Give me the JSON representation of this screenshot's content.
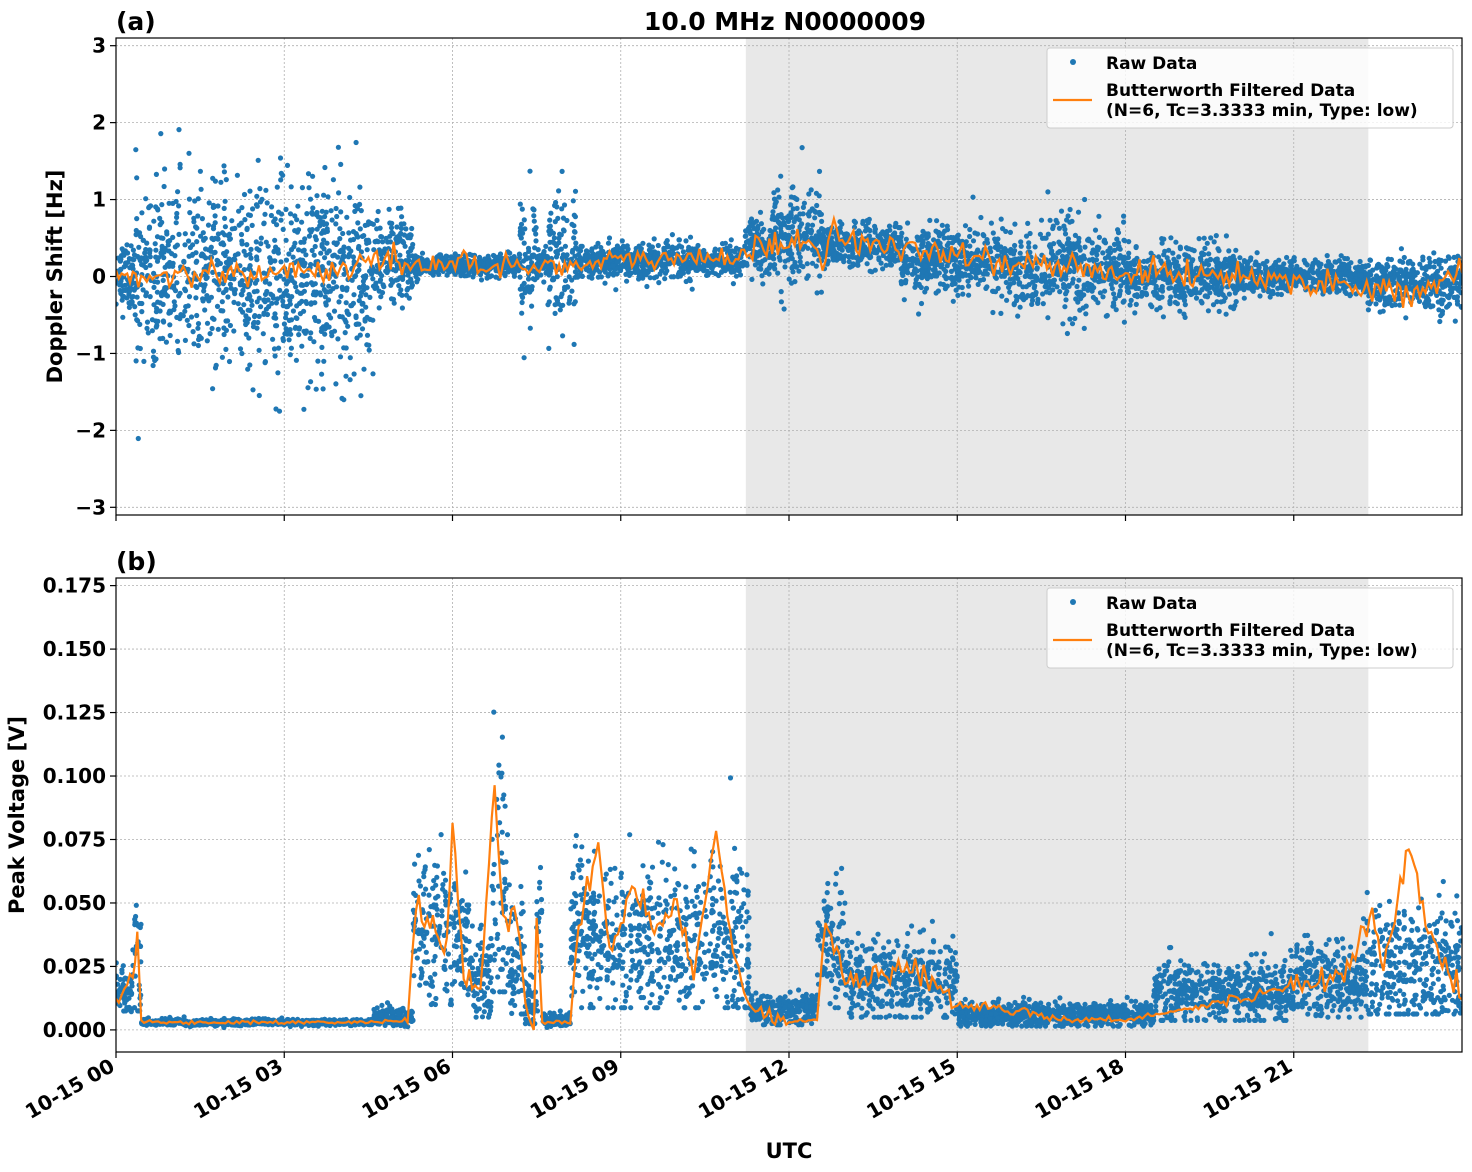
{
  "chart_data": {
    "type": "scatter",
    "title": "10.0 MHz N0000009",
    "xlabel": "UTC",
    "x_unit": "hours since 10-15 00:00",
    "xlim": [
      0,
      24
    ],
    "x_ticks": [
      0,
      3,
      6,
      9,
      12,
      15,
      18,
      21
    ],
    "x_tick_labels": [
      "10-15 00",
      "10-15 03",
      "10-15 06",
      "10-15 09",
      "10-15 12",
      "10-15 15",
      "10-15 18",
      "10-15 21"
    ],
    "shaded_interval": [
      11.23,
      22.33
    ],
    "colors": {
      "raw": "#1f77b4",
      "filtered": "#ff7f0e",
      "shade": "#e8e8e8"
    },
    "legend": {
      "placement": "top-right",
      "entries": [
        "Raw Data",
        "Butterworth Filtered Data",
        "(N=6, Tc=3.3333 min, Type: low)"
      ]
    },
    "panels": [
      {
        "label": "(a)",
        "ylabel": "Doppler Shift [Hz]",
        "ylim": [
          -3.1,
          3.1
        ],
        "y_ticks": [
          -3,
          -2,
          -1,
          0,
          1,
          2,
          3
        ],
        "y_tick_labels": [
          "−3",
          "−2",
          "−1",
          "0",
          "1",
          "2",
          "3"
        ],
        "raw_segments": [
          {
            "t": [
              0,
              0.35
            ],
            "center": 0,
            "spread": 0.4
          },
          {
            "t": [
              0.35,
              4.6
            ],
            "center": 0,
            "spread": 1.1
          },
          {
            "t": [
              4.6,
              5.3
            ],
            "center": 0.2,
            "spread": 0.55
          },
          {
            "t": [
              5.3,
              7.2
            ],
            "center": 0.15,
            "spread": 0.12
          },
          {
            "t": [
              7.2,
              7.5
            ],
            "center": 0.1,
            "spread": 0.85
          },
          {
            "t": [
              7.5,
              7.7
            ],
            "center": 0.15,
            "spread": 0.2
          },
          {
            "t": [
              7.7,
              8.2
            ],
            "center": 0.2,
            "spread": 0.85
          },
          {
            "t": [
              8.2,
              11.2
            ],
            "center": 0.2,
            "spread": 0.2
          },
          {
            "t": [
              11.2,
              11.7
            ],
            "center": 0.4,
            "spread": 0.3
          },
          {
            "t": [
              11.7,
              12.6
            ],
            "center": 0.5,
            "spread": 0.6
          },
          {
            "t": [
              12.6,
              14
            ],
            "center": 0.4,
            "spread": 0.25
          },
          {
            "t": [
              14,
              16
            ],
            "center": 0.2,
            "spread": 0.4
          },
          {
            "t": [
              16,
              18
            ],
            "center": 0.1,
            "spread": 0.55
          },
          {
            "t": [
              18,
              20
            ],
            "center": 0,
            "spread": 0.35
          },
          {
            "t": [
              20,
              22.3
            ],
            "center": 0,
            "spread": 0.2
          },
          {
            "t": [
              22.3,
              24
            ],
            "center": -0.1,
            "spread": 0.3
          }
        ],
        "filtered": [
          [
            0,
            0
          ],
          [
            0.5,
            0
          ],
          [
            1,
            0.05
          ],
          [
            1.5,
            0
          ],
          [
            2,
            0.1
          ],
          [
            2.5,
            0
          ],
          [
            3,
            0.1
          ],
          [
            3.5,
            0.05
          ],
          [
            4,
            0.1
          ],
          [
            4.5,
            0.2
          ],
          [
            5,
            0.2
          ],
          [
            5.5,
            0.15
          ],
          [
            6,
            0.2
          ],
          [
            6.5,
            0.1
          ],
          [
            7,
            0.15
          ],
          [
            7.5,
            0.15
          ],
          [
            8,
            0.15
          ],
          [
            8.5,
            0.15
          ],
          [
            9,
            0.2
          ],
          [
            9.5,
            0.25
          ],
          [
            10,
            0.2
          ],
          [
            10.5,
            0.25
          ],
          [
            11,
            0.25
          ],
          [
            11.5,
            0.35
          ],
          [
            12,
            0.5
          ],
          [
            12.5,
            0.4
          ],
          [
            12.6,
            0.05
          ],
          [
            12.8,
            0.75
          ],
          [
            13,
            0.5
          ],
          [
            13.5,
            0.4
          ],
          [
            14,
            0.35
          ],
          [
            14.5,
            0.3
          ],
          [
            15,
            0.25
          ],
          [
            15.5,
            0.25
          ],
          [
            16,
            0.15
          ],
          [
            16.5,
            0.15
          ],
          [
            17,
            0.1
          ],
          [
            17.5,
            0.1
          ],
          [
            18,
            0.05
          ],
          [
            18.5,
            0.05
          ],
          [
            19,
            0
          ],
          [
            19.5,
            0.05
          ],
          [
            20,
            0
          ],
          [
            20.5,
            0
          ],
          [
            21,
            -0.05
          ],
          [
            21.5,
            -0.1
          ],
          [
            22,
            -0.1
          ],
          [
            22.5,
            -0.15
          ],
          [
            23,
            -0.2
          ],
          [
            23.5,
            -0.15
          ],
          [
            24,
            0.05
          ]
        ]
      },
      {
        "label": "(b)",
        "ylabel": "Peak Voltage [V]",
        "ylim": [
          -0.0087,
          0.178
        ],
        "y_ticks": [
          0,
          0.025,
          0.05,
          0.075,
          0.1,
          0.125,
          0.15,
          0.175
        ],
        "y_tick_labels": [
          "0.000",
          "0.025",
          "0.050",
          "0.075",
          "0.100",
          "0.125",
          "0.150",
          "0.175"
        ],
        "raw_segments": [
          {
            "t": [
              0,
              0.3
            ],
            "center": 0.015,
            "spread": 0.008
          },
          {
            "t": [
              0.3,
              0.45
            ],
            "center": 0.03,
            "spread": 0.03
          },
          {
            "t": [
              0.45,
              4.6
            ],
            "center": 0.003,
            "spread": 0.001
          },
          {
            "t": [
              4.6,
              5.3
            ],
            "center": 0.005,
            "spread": 0.003
          },
          {
            "t": [
              5.3,
              6.3
            ],
            "center": 0.04,
            "spread": 0.025
          },
          {
            "t": [
              6.3,
              6.7
            ],
            "center": 0.02,
            "spread": 0.015
          },
          {
            "t": [
              6.7,
              7.0
            ],
            "center": 0.06,
            "spread": 0.04
          },
          {
            "t": [
              7.0,
              7.3
            ],
            "center": 0.025,
            "spread": 0.02
          },
          {
            "t": [
              7.3,
              7.5
            ],
            "center": 0.01,
            "spread": 0.01
          },
          {
            "t": [
              7.5,
              7.6
            ],
            "center": 0.03,
            "spread": 0.03
          },
          {
            "t": [
              7.6,
              8.1
            ],
            "center": 0.004,
            "spread": 0.002
          },
          {
            "t": [
              8.1,
              11.3
            ],
            "center": 0.035,
            "spread": 0.025
          },
          {
            "t": [
              11.3,
              12.5
            ],
            "center": 0.008,
            "spread": 0.005
          },
          {
            "t": [
              12.5,
              13
            ],
            "center": 0.035,
            "spread": 0.02
          },
          {
            "t": [
              13,
              15
            ],
            "center": 0.02,
            "spread": 0.013
          },
          {
            "t": [
              15,
              18.5
            ],
            "center": 0.006,
            "spread": 0.004
          },
          {
            "t": [
              18.5,
              21
            ],
            "center": 0.015,
            "spread": 0.01
          },
          {
            "t": [
              21,
              22.3
            ],
            "center": 0.02,
            "spread": 0.012
          },
          {
            "t": [
              22.3,
              24
            ],
            "center": 0.025,
            "spread": 0.02
          }
        ],
        "filtered": [
          [
            0,
            0.012
          ],
          [
            0.3,
            0.02
          ],
          [
            0.38,
            0.042
          ],
          [
            0.45,
            0.003
          ],
          [
            4.6,
            0.003
          ],
          [
            5.2,
            0.004
          ],
          [
            5.35,
            0.05
          ],
          [
            5.6,
            0.04
          ],
          [
            5.9,
            0.03
          ],
          [
            6.0,
            0.085
          ],
          [
            6.2,
            0.02
          ],
          [
            6.5,
            0.015
          ],
          [
            6.75,
            0.1
          ],
          [
            6.9,
            0.04
          ],
          [
            7.1,
            0.05
          ],
          [
            7.3,
            0.01
          ],
          [
            7.45,
            0.0
          ],
          [
            7.5,
            0.045
          ],
          [
            7.6,
            0.003
          ],
          [
            8.1,
            0.003
          ],
          [
            8.2,
            0.03
          ],
          [
            8.6,
            0.075
          ],
          [
            8.8,
            0.03
          ],
          [
            9.2,
            0.055
          ],
          [
            9.6,
            0.04
          ],
          [
            10,
            0.05
          ],
          [
            10.3,
            0.02
          ],
          [
            10.7,
            0.08
          ],
          [
            11,
            0.03
          ],
          [
            11.3,
            0.01
          ],
          [
            12,
            0.003
          ],
          [
            12.5,
            0.004
          ],
          [
            12.65,
            0.045
          ],
          [
            13,
            0.02
          ],
          [
            13.5,
            0.02
          ],
          [
            14,
            0.025
          ],
          [
            14.5,
            0.02
          ],
          [
            15,
            0.01
          ],
          [
            16,
            0.008
          ],
          [
            17,
            0.004
          ],
          [
            18,
            0.004
          ],
          [
            19,
            0.008
          ],
          [
            20,
            0.012
          ],
          [
            21,
            0.018
          ],
          [
            21.5,
            0.02
          ],
          [
            22,
            0.025
          ],
          [
            22.4,
            0.05
          ],
          [
            22.6,
            0.02
          ],
          [
            22.9,
            0.06
          ],
          [
            23.1,
            0.07
          ],
          [
            23.4,
            0.04
          ],
          [
            24,
            0.012
          ]
        ]
      }
    ]
  }
}
